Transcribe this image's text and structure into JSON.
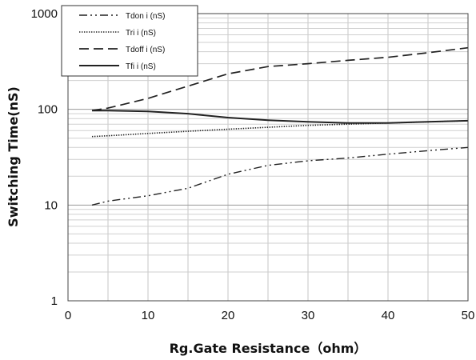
{
  "chart_data": {
    "type": "line",
    "title": "",
    "xlabel": "Rg.Gate Resistance（ohm）",
    "ylabel": "Switching Time(nS)",
    "xlim": [
      0,
      50
    ],
    "ylim": [
      1,
      1000
    ],
    "yscale": "log",
    "grid": true,
    "legend_position": "top-left",
    "x_ticks": [
      "0",
      "10",
      "20",
      "30",
      "40",
      "50"
    ],
    "y_ticks": [
      "1",
      "10",
      "100",
      "1000"
    ],
    "x": [
      3,
      5,
      10,
      15,
      20,
      25,
      30,
      35,
      40,
      45,
      50
    ],
    "series": [
      {
        "name": "Tdon i (nS)",
        "dash": "dash-dot-dot",
        "color": "#222222",
        "values": [
          10,
          11,
          12.5,
          15,
          21,
          26,
          29,
          31,
          34,
          37,
          40
        ]
      },
      {
        "name": "Tri i (nS)",
        "dash": "dotted",
        "color": "#222222",
        "values": [
          52,
          53,
          56,
          59,
          62,
          65,
          68,
          70,
          72,
          74,
          76
        ]
      },
      {
        "name": "Tdoff i (nS)",
        "dash": "dashed",
        "color": "#222222",
        "values": [
          97,
          103,
          130,
          175,
          235,
          280,
          300,
          325,
          350,
          390,
          440
        ]
      },
      {
        "name": "Tfi i (nS)",
        "dash": "solid",
        "color": "#222222",
        "values": [
          97,
          97,
          95,
          90,
          82,
          77,
          74,
          72,
          72,
          74,
          76
        ]
      }
    ]
  }
}
